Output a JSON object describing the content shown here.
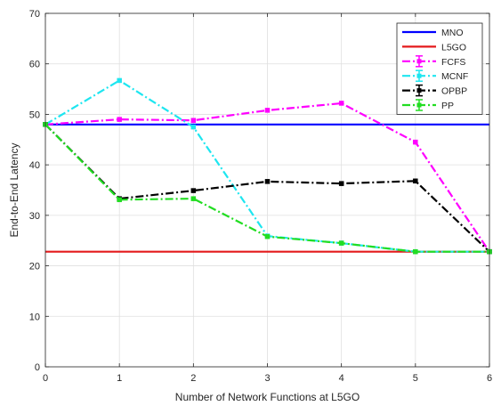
{
  "chart_data": {
    "type": "line",
    "xlabel": "Number of Network Functions at L5GO",
    "ylabel": "End-to-End Latency",
    "xlim": [
      0,
      6
    ],
    "ylim": [
      0,
      70
    ],
    "xticks": [
      "0",
      "1",
      "2",
      "3",
      "4",
      "5",
      "6"
    ],
    "yticks": [
      "0",
      "10",
      "20",
      "30",
      "40",
      "50",
      "60",
      "70"
    ],
    "grid": true,
    "legend_position": "top-right",
    "x": [
      0,
      1,
      2,
      3,
      4,
      5,
      6
    ],
    "series": [
      {
        "name": "MNO",
        "color": "#0000ff",
        "style": "solid",
        "marker": "none",
        "errorbars": false,
        "values": [
          48,
          48,
          48,
          48,
          48,
          48,
          48
        ]
      },
      {
        "name": "L5GO",
        "color": "#e41a1c",
        "style": "solid",
        "marker": "none",
        "errorbars": false,
        "values": [
          22.8,
          22.8,
          22.8,
          22.8,
          22.8,
          22.8,
          22.8
        ]
      },
      {
        "name": "FCFS",
        "color": "#ff00ff",
        "style": "dashdot",
        "marker": "square",
        "errorbars": true,
        "values": [
          48,
          49,
          48.8,
          50.8,
          52.2,
          44.5,
          22.8
        ]
      },
      {
        "name": "MCNF",
        "color": "#1ee6f0",
        "style": "dashdot",
        "marker": "square",
        "errorbars": true,
        "values": [
          48,
          56.7,
          47.5,
          25.9,
          24.5,
          22.8,
          22.8
        ]
      },
      {
        "name": "OPBP",
        "color": "#000000",
        "style": "dashdot",
        "marker": "square",
        "errorbars": true,
        "values": [
          48,
          33.3,
          34.9,
          36.7,
          36.3,
          36.8,
          22.8
        ]
      },
      {
        "name": "PP",
        "color": "#22dd22",
        "style": "dashdot",
        "marker": "square",
        "errorbars": true,
        "values": [
          48,
          33.1,
          33.3,
          25.8,
          24.5,
          22.8,
          22.8
        ]
      }
    ]
  }
}
